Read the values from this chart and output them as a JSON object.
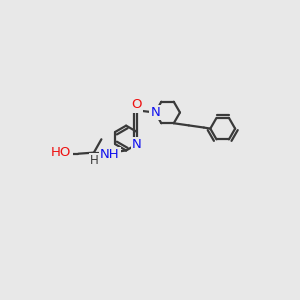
{
  "background_color": "#e8e8e8",
  "bond_color": "#3a3a3a",
  "bond_width": 1.6,
  "font_size": 9.5,
  "fig_width": 3.0,
  "fig_height": 3.0,
  "dpi": 100,
  "colors": {
    "N": "#1010ee",
    "O": "#ee1010",
    "C": "#3a3a3a",
    "H": "#3a3a3a"
  }
}
